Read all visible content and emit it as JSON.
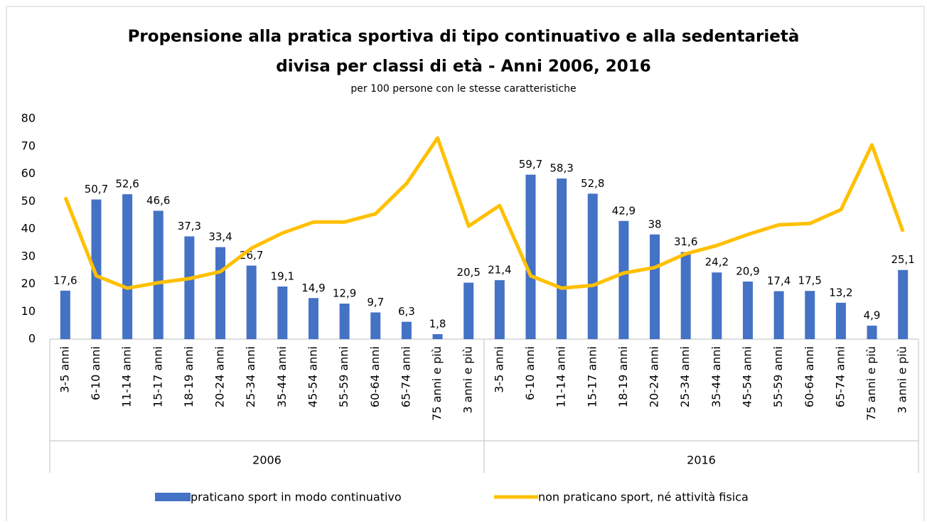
{
  "chart_data": {
    "type": "bar_line",
    "title": [
      "Propensione alla pratica sportiva di tipo continuativo e alla sedentarietà",
      "divisa per classi di età - Anni 2006, 2016"
    ],
    "subtitle": "per 100 persone con le stesse caratteristiche",
    "groups": [
      {
        "label": "2006",
        "categories": [
          "3-5 anni",
          "6-10 anni",
          "11-14 anni",
          "15-17 anni",
          "18-19 anni",
          "20-24 anni",
          "25-34 anni",
          "35-44 anni",
          "45-54 anni",
          "55-59 anni",
          "60-64 anni",
          "65-74 anni",
          "75 anni e più",
          "3 anni e più"
        ]
      },
      {
        "label": "2016",
        "categories": [
          "3-5 anni",
          "6-10 anni",
          "11-14 anni",
          "15-17 anni",
          "18-19 anni",
          "20-24 anni",
          "25-34 anni",
          "35-44 anni",
          "45-54 anni",
          "55-59 anni",
          "60-64 anni",
          "65-74 anni",
          "75 anni e più",
          "3 anni e più"
        ]
      }
    ],
    "series": [
      {
        "name": "praticano sport in modo continuativo",
        "type": "bar",
        "color": "#4472c4",
        "values": [
          17.6,
          50.7,
          52.6,
          46.6,
          37.3,
          33.4,
          26.7,
          19.1,
          14.9,
          12.9,
          9.7,
          6.3,
          1.8,
          20.5,
          21.4,
          59.7,
          58.3,
          52.8,
          42.9,
          38,
          31.6,
          24.2,
          20.9,
          17.4,
          17.5,
          13.2,
          4.9,
          25.1
        ],
        "value_labels": [
          "17,6",
          "50,7",
          "52,6",
          "46,6",
          "37,3",
          "33,4",
          "26,7",
          "19,1",
          "14,9",
          "12,9",
          "9,7",
          "6,3",
          "1,8",
          "20,5",
          "21,4",
          "59,7",
          "58,3",
          "52,8",
          "42,9",
          "38",
          "31,6",
          "24,2",
          "20,9",
          "17,4",
          "17,5",
          "13,2",
          "4,9",
          "25,1"
        ]
      },
      {
        "name": "non praticano sport, né attività fisica",
        "type": "line",
        "color": "#ffc000",
        "values": [
          51.5,
          23,
          18.5,
          20.5,
          22,
          24.5,
          33,
          38.5,
          42.5,
          42.5,
          45.5,
          56.5,
          73,
          41,
          48.5,
          23,
          18.5,
          19.5,
          24,
          26,
          31,
          34,
          38,
          41.5,
          42,
          47,
          70.5,
          39
        ]
      }
    ],
    "ylim": [
      0,
      80
    ],
    "yticks": [
      0,
      10,
      20,
      30,
      40,
      50,
      60,
      70,
      80
    ],
    "legend": "bottom"
  }
}
